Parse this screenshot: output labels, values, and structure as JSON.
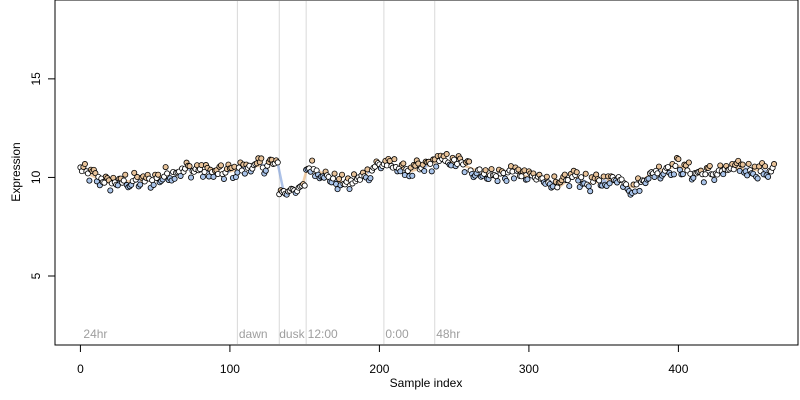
{
  "chart_data": {
    "type": "scatter",
    "title": "",
    "xlabel": "Sample index",
    "ylabel": "Expression",
    "xlim": [
      -17,
      480
    ],
    "ylim": [
      1.5,
      19
    ],
    "x_ticks": [
      "0",
      "100",
      "200",
      "300",
      "400"
    ],
    "y_ticks": [
      "5",
      "10",
      "15"
    ],
    "grid": false,
    "legend": "none",
    "phase_markers": [
      {
        "x": 105,
        "label": ""
      },
      {
        "x": 133,
        "label": ""
      },
      {
        "x": 151,
        "label": ""
      },
      {
        "x": 203,
        "label": ""
      },
      {
        "x": 237,
        "label": ""
      }
    ],
    "phase_labels": [
      {
        "x": 2,
        "label": "24hr"
      },
      {
        "x": 106,
        "label": "dawn"
      },
      {
        "x": 133,
        "label": "dusk"
      },
      {
        "x": 152,
        "label": "12:00"
      },
      {
        "x": 204,
        "label": "0:00"
      },
      {
        "x": 238,
        "label": "48hr"
      }
    ],
    "colors": {
      "light_point": "#e8c39a",
      "dark_point": "#a9c4ea",
      "neutral_point": "#ffffff",
      "trend_light": "#e8a860",
      "trend_dark": "#6a8fd6",
      "marker_line": "#d9d9d9",
      "phase_label": "#9e9e9e"
    },
    "series": [
      {
        "point_count": 465,
        "y_anchors": [
          [
            0,
            10.4
          ],
          [
            10,
            10.0
          ],
          [
            20,
            9.7
          ],
          [
            30,
            9.8
          ],
          [
            40,
            9.8
          ],
          [
            50,
            9.9
          ],
          [
            60,
            10.2
          ],
          [
            70,
            10.4
          ],
          [
            80,
            10.4
          ],
          [
            90,
            10.2
          ],
          [
            100,
            10.3
          ],
          [
            110,
            10.5
          ],
          [
            120,
            10.6
          ],
          [
            132,
            10.7
          ],
          [
            133,
            9.2
          ],
          [
            150,
            9.5
          ],
          [
            151,
            10.6
          ],
          [
            160,
            10.3
          ],
          [
            170,
            9.8
          ],
          [
            180,
            9.7
          ],
          [
            190,
            10.1
          ],
          [
            200,
            10.7
          ],
          [
            210,
            10.6
          ],
          [
            220,
            10.3
          ],
          [
            230,
            10.5
          ],
          [
            240,
            10.9
          ],
          [
            250,
            10.8
          ],
          [
            260,
            10.5
          ],
          [
            270,
            10.2
          ],
          [
            280,
            10.1
          ],
          [
            290,
            10.3
          ],
          [
            300,
            10.0
          ],
          [
            310,
            10.0
          ],
          [
            320,
            9.5
          ],
          [
            330,
            10.1
          ],
          [
            340,
            9.7
          ],
          [
            350,
            9.8
          ],
          [
            360,
            10.0
          ],
          [
            370,
            9.4
          ],
          [
            380,
            10.1
          ],
          [
            390,
            10.4
          ],
          [
            400,
            10.6
          ],
          [
            410,
            10.2
          ],
          [
            420,
            10.2
          ],
          [
            430,
            10.3
          ],
          [
            440,
            10.5
          ],
          [
            450,
            10.4
          ],
          [
            460,
            10.3
          ],
          [
            464,
            10.5
          ]
        ],
        "wiggle_amplitude": 0.35
      }
    ]
  }
}
